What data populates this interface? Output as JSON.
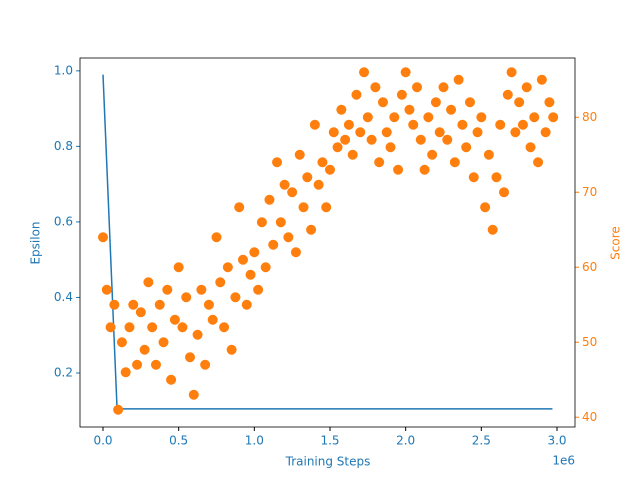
{
  "chart_data": {
    "type": "line-scatter-dual",
    "x_label": "Training Steps",
    "x_offset_label": "1e6",
    "y_label": "Epsilon",
    "y2_label": "Score",
    "xlim": [
      -152000,
      3119000
    ],
    "xticks": [
      {
        "value": 0,
        "label": "0.0"
      },
      {
        "value": 500000,
        "label": "0.5"
      },
      {
        "value": 1000000,
        "label": "1.0"
      },
      {
        "value": 1500000,
        "label": "1.5"
      },
      {
        "value": 2000000,
        "label": "2.0"
      },
      {
        "value": 2500000,
        "label": "2.5"
      },
      {
        "value": 3000000,
        "label": "3.0"
      }
    ],
    "ylim": [
      0.057,
      1.034
    ],
    "yticks": [
      0.2,
      0.4,
      0.6,
      0.8,
      {
        "value": 1,
        "label": "1.0"
      }
    ],
    "y2lim": [
      38.7,
      87.9
    ],
    "y2ticks": [
      40,
      50,
      60,
      70,
      80
    ],
    "series": [
      {
        "name": "Epsilon",
        "type": "line",
        "color": "#1f77b4",
        "x": [
          0,
          93000,
          2970000
        ],
        "values": [
          0.99,
          0.105,
          0.105
        ]
      },
      {
        "name": "Score",
        "type": "scatter",
        "axis": "y2",
        "color": "#ff7f0e",
        "x": [
          0,
          25000,
          50000,
          75000,
          100000,
          125000,
          150000,
          175000,
          200000,
          225000,
          250000,
          275000,
          300000,
          325000,
          350000,
          375000,
          400000,
          425000,
          450000,
          475000,
          500000,
          525000,
          550000,
          575000,
          600000,
          625000,
          650000,
          675000,
          700000,
          725000,
          750000,
          775000,
          800000,
          825000,
          850000,
          875000,
          900000,
          925000,
          950000,
          975000,
          1000000,
          1025000,
          1050000,
          1075000,
          1100000,
          1125000,
          1150000,
          1175000,
          1200000,
          1225000,
          1250000,
          1275000,
          1300000,
          1325000,
          1350000,
          1375000,
          1400000,
          1425000,
          1450000,
          1475000,
          1500000,
          1525000,
          1550000,
          1575000,
          1600000,
          1625000,
          1650000,
          1675000,
          1700000,
          1725000,
          1750000,
          1775000,
          1800000,
          1825000,
          1850000,
          1875000,
          1900000,
          1925000,
          1950000,
          1975000,
          2000000,
          2025000,
          2050000,
          2075000,
          2100000,
          2125000,
          2150000,
          2175000,
          2200000,
          2225000,
          2250000,
          2275000,
          2300000,
          2325000,
          2350000,
          2375000,
          2400000,
          2425000,
          2450000,
          2475000,
          2500000,
          2525000,
          2550000,
          2575000,
          2600000,
          2625000,
          2650000,
          2675000,
          2700000,
          2725000,
          2750000,
          2775000,
          2800000,
          2825000,
          2850000,
          2875000,
          2900000,
          2925000,
          2950000,
          2975000
        ],
        "values": [
          64,
          57,
          52,
          55,
          41,
          50,
          46,
          52,
          55,
          47,
          54,
          49,
          58,
          52,
          47,
          55,
          50,
          57,
          45,
          53,
          60,
          52,
          56,
          48,
          43,
          51,
          57,
          47,
          55,
          53,
          64,
          58,
          52,
          60,
          49,
          56,
          68,
          61,
          55,
          59,
          62,
          57,
          66,
          60,
          69,
          63,
          74,
          66,
          71,
          64,
          70,
          62,
          75,
          68,
          72,
          65,
          79,
          71,
          74,
          68,
          73,
          78,
          76,
          81,
          77,
          79,
          75,
          83,
          78,
          86,
          80,
          77,
          84,
          74,
          82,
          78,
          76,
          80,
          73,
          83,
          86,
          81,
          79,
          84,
          77,
          73,
          80,
          75,
          82,
          78,
          84,
          77,
          81,
          74,
          85,
          79,
          76,
          82,
          72,
          78,
          80,
          68,
          75,
          65,
          72,
          79,
          70,
          83,
          86,
          78,
          82,
          79,
          84,
          76,
          80,
          74,
          85,
          78,
          82,
          80
        ]
      }
    ]
  }
}
